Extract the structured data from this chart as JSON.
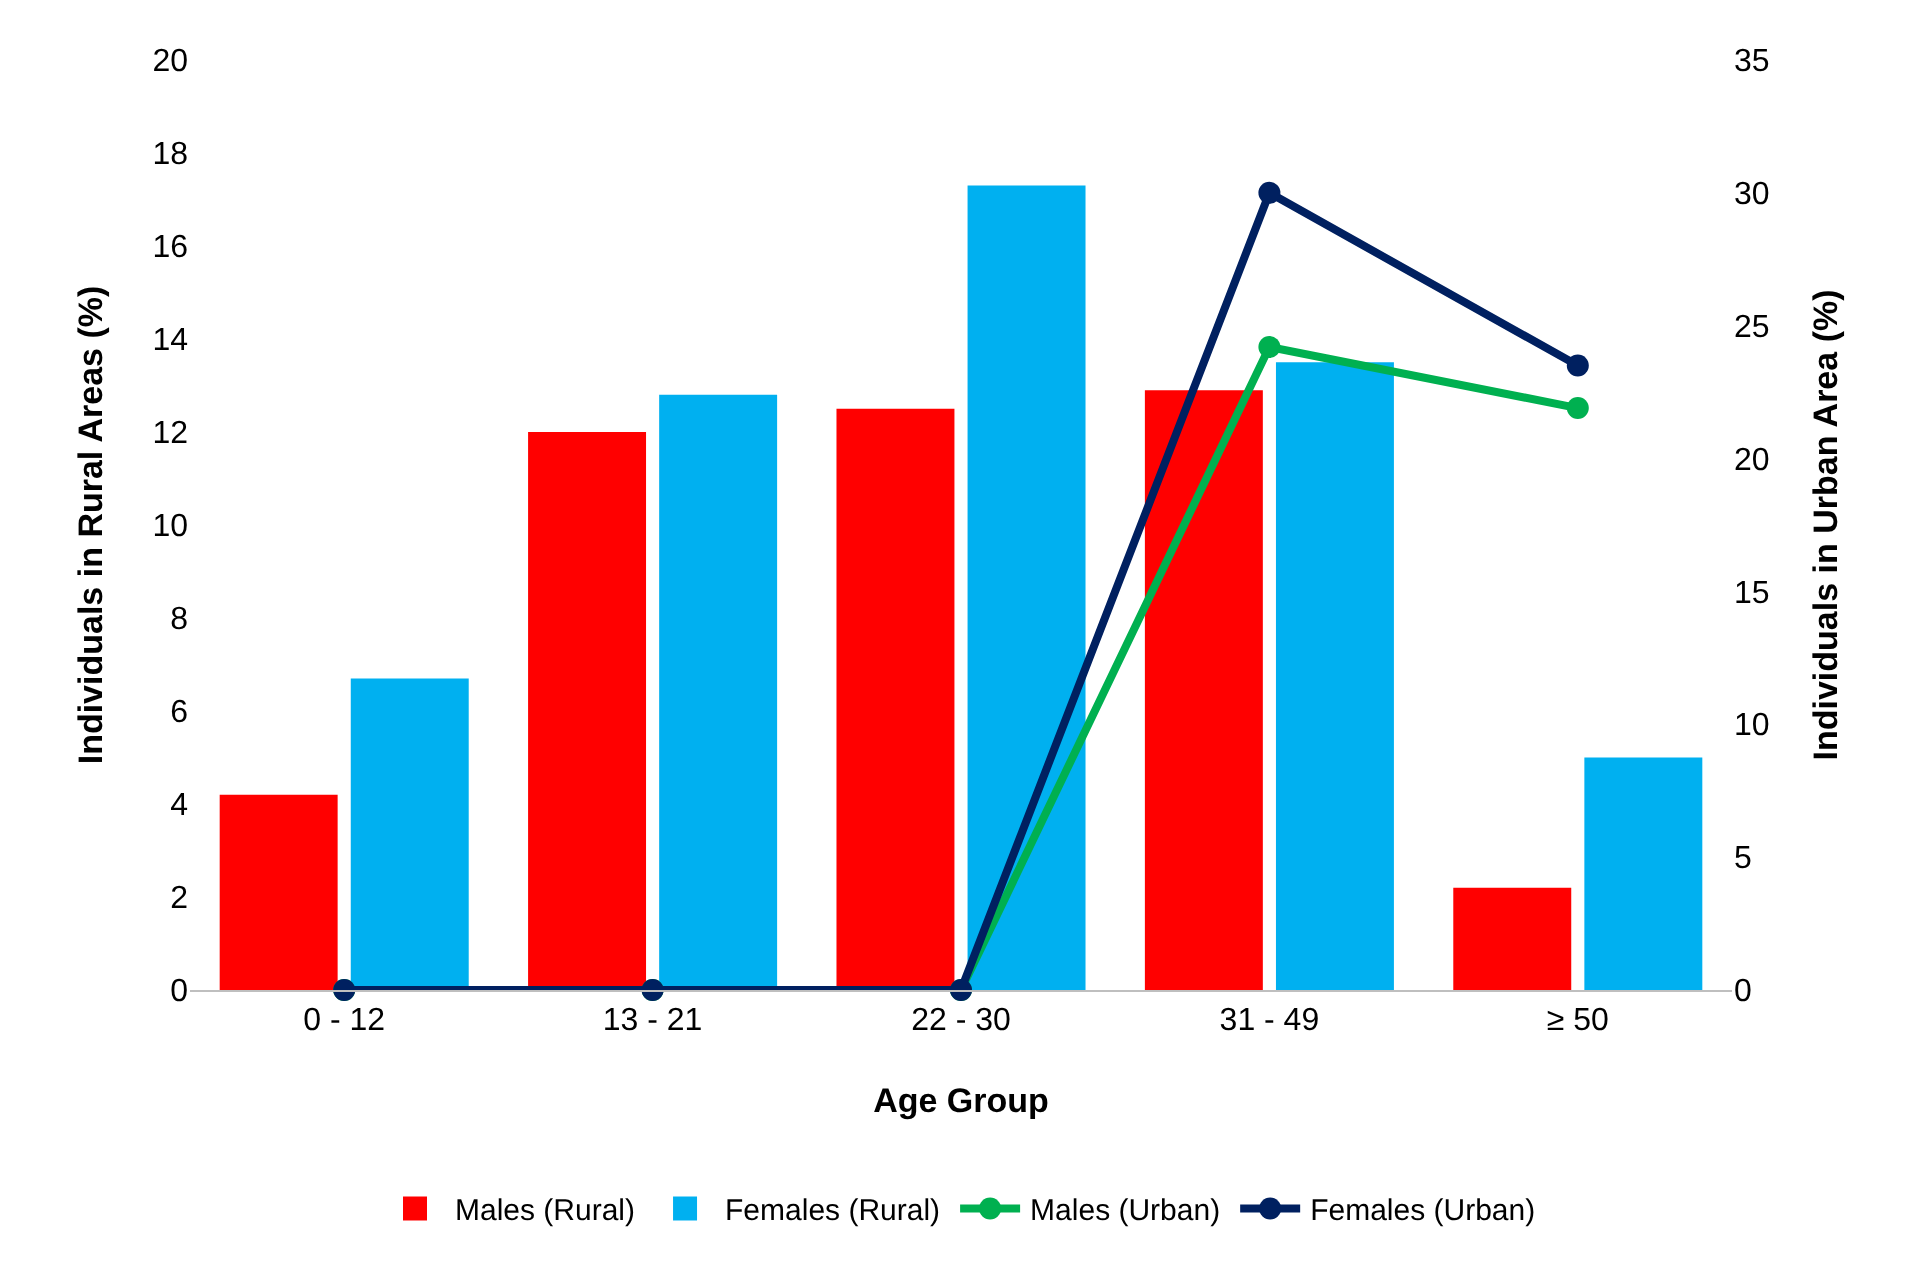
{
  "chart_data": {
    "type": "bar",
    "xlabel": "Age Group",
    "ylabel": "Individuals in Rural Areas (%)",
    "y2label": "Individuals in Urban Area (%)",
    "categories": [
      "0 - 12",
      "13 - 21",
      "22 - 30",
      "31 - 49",
      "≥ 50"
    ],
    "ylim": [
      0,
      20
    ],
    "yticks": [
      0,
      2,
      4,
      6,
      8,
      10,
      12,
      14,
      16,
      18,
      20
    ],
    "y2lim": [
      0,
      35
    ],
    "y2ticks": [
      0,
      5,
      10,
      15,
      20,
      25,
      30,
      35
    ],
    "grid": false,
    "legend": "bottom",
    "marker": "circle",
    "series": [
      {
        "name": "Males (Rural)",
        "color": "#ff0000",
        "values": [
          4.2,
          12.0,
          12.5,
          12.9,
          2.2
        ]
      },
      {
        "name": "Females (Rural)",
        "color": "#00b0f0",
        "values": [
          6.7,
          12.8,
          17.3,
          13.5,
          5.0
        ]
      },
      {
        "name": "Males (Urban)",
        "type": "line",
        "axis": "y2",
        "color": "#00b050",
        "values": [
          0,
          0,
          0,
          24.2,
          21.9
        ]
      },
      {
        "name": "Females (Urban)",
        "type": "line",
        "axis": "y2",
        "color": "#002060",
        "values": [
          0,
          0,
          0,
          30.0,
          23.5
        ]
      }
    ]
  }
}
